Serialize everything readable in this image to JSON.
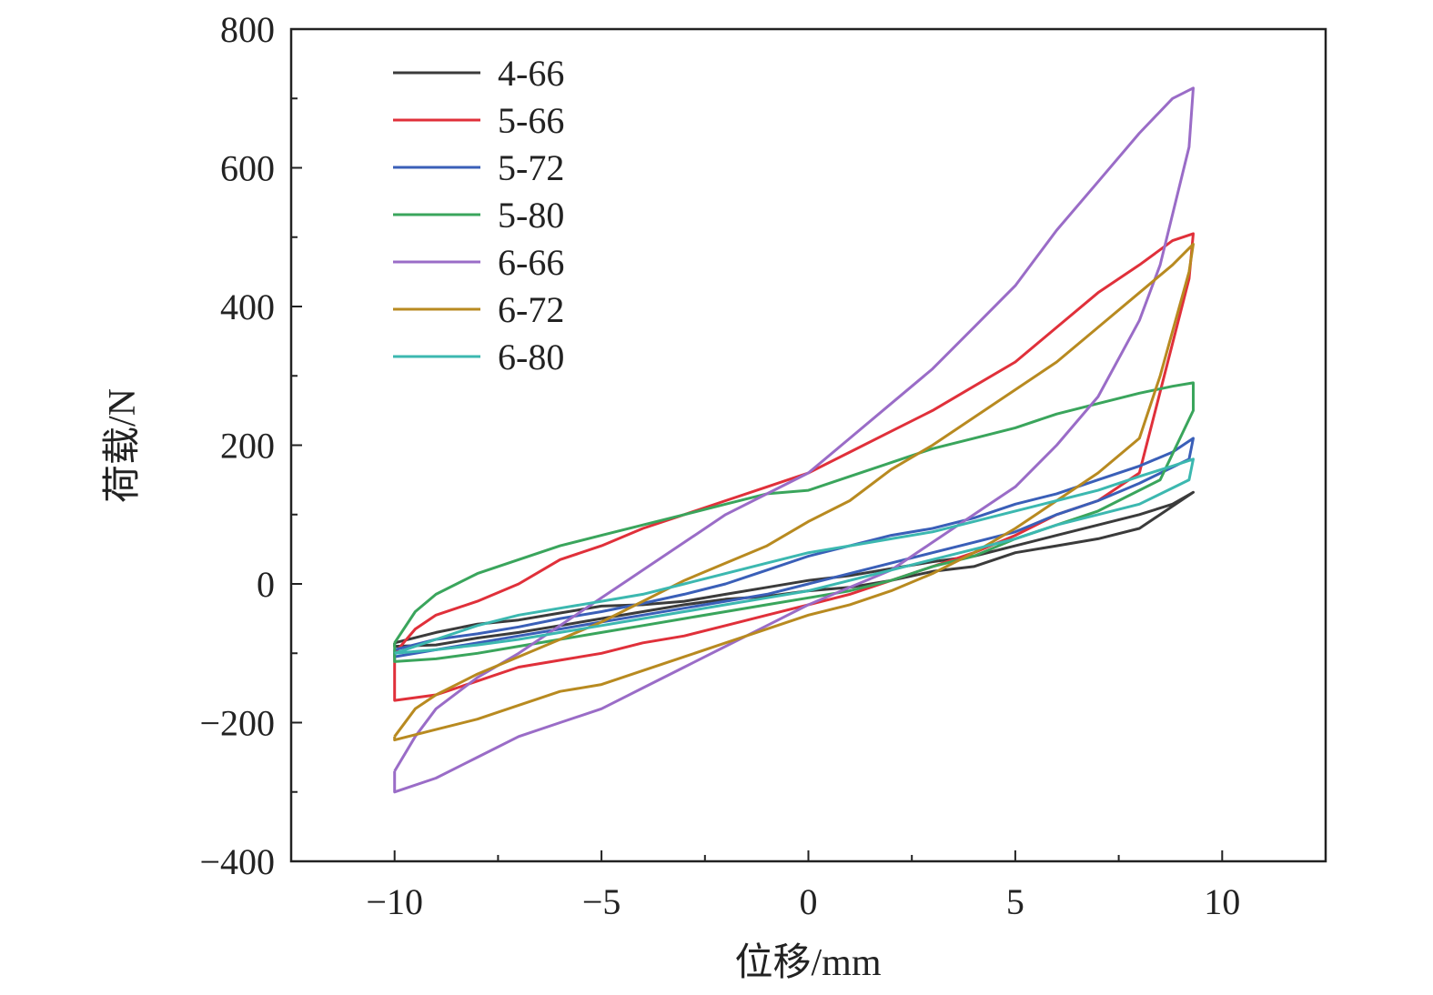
{
  "chart_data": {
    "type": "line",
    "title": "",
    "xlabel": "位移/mm",
    "ylabel": "荷载/N",
    "xlim": [
      -12.5,
      12.5
    ],
    "ylim": [
      -400,
      800
    ],
    "x_ticks": [
      -10,
      -5,
      0,
      5,
      10
    ],
    "x_tick_labels": [
      "−10",
      "−5",
      "0",
      "5",
      "10"
    ],
    "y_ticks": [
      -400,
      -200,
      0,
      200,
      400,
      600,
      800
    ],
    "y_tick_labels": [
      "−400",
      "−200",
      "0",
      "200",
      "400",
      "600",
      "800"
    ],
    "grid": false,
    "legend_position": "top-left",
    "series": [
      {
        "name": "4-66",
        "color": "#3b3b3b",
        "x": [
          -10,
          -9,
          -8,
          -7,
          -6,
          -5,
          -4,
          -3,
          -2,
          -1,
          0,
          1,
          2,
          3,
          4,
          5,
          6,
          7,
          8,
          8.8,
          9.3,
          9.2,
          8,
          7,
          6,
          5,
          4,
          3,
          2,
          1,
          0,
          -1,
          -2,
          -3,
          -4,
          -5,
          -6,
          -7,
          -8,
          -9,
          -10,
          -10
        ],
        "y": [
          -85,
          -70,
          -58,
          -52,
          -42,
          -32,
          -30,
          -25,
          -15,
          -5,
          5,
          12,
          22,
          32,
          40,
          55,
          70,
          85,
          100,
          115,
          132,
          128,
          80,
          65,
          55,
          45,
          25,
          18,
          5,
          -5,
          -10,
          -18,
          -22,
          -30,
          -40,
          -50,
          -60,
          -70,
          -78,
          -88,
          -90,
          -85
        ]
      },
      {
        "name": "5-66",
        "color": "#e0303a",
        "x": [
          -10,
          -9.5,
          -9,
          -8,
          -7,
          -6,
          -5,
          -4,
          -3,
          -2,
          -1,
          0,
          1,
          2,
          3,
          4,
          5,
          6,
          7,
          8,
          8.8,
          9.3,
          9.2,
          8,
          7,
          6,
          5,
          4,
          3,
          2,
          1,
          0,
          -1,
          -2,
          -3,
          -4,
          -5,
          -6,
          -7,
          -8,
          -9,
          -10,
          -10
        ],
        "y": [
          -100,
          -65,
          -45,
          -25,
          0,
          35,
          55,
          80,
          100,
          120,
          140,
          160,
          190,
          220,
          250,
          285,
          320,
          370,
          420,
          460,
          495,
          505,
          440,
          160,
          120,
          100,
          70,
          45,
          25,
          5,
          -15,
          -30,
          -45,
          -60,
          -75,
          -85,
          -100,
          -110,
          -120,
          -140,
          -160,
          -168,
          -100
        ]
      },
      {
        "name": "5-72",
        "color": "#3a5fb8",
        "x": [
          -10,
          -9,
          -8,
          -7,
          -6,
          -5,
          -4,
          -3,
          -2,
          -1,
          0,
          1,
          2,
          3,
          4,
          5,
          6,
          7,
          8,
          8.8,
          9.3,
          9.2,
          8,
          7,
          6,
          5,
          4,
          3,
          2,
          1,
          0,
          -1,
          -2,
          -3,
          -4,
          -5,
          -6,
          -7,
          -8,
          -9,
          -10,
          -10
        ],
        "y": [
          -95,
          -80,
          -72,
          -62,
          -50,
          -40,
          -28,
          -15,
          0,
          20,
          40,
          55,
          70,
          80,
          95,
          115,
          130,
          150,
          170,
          190,
          210,
          180,
          145,
          120,
          100,
          75,
          60,
          45,
          30,
          15,
          0,
          -15,
          -25,
          -35,
          -45,
          -55,
          -65,
          -75,
          -85,
          -95,
          -105,
          -95
        ]
      },
      {
        "name": "5-80",
        "color": "#3aa55c",
        "x": [
          -10,
          -9.5,
          -9,
          -8,
          -7,
          -6,
          -5,
          -4,
          -3,
          -2,
          -1,
          0,
          1,
          2,
          3,
          4,
          5,
          6,
          7,
          8,
          8.8,
          9.3,
          9.3,
          8.5,
          7,
          6,
          5,
          4,
          3,
          2,
          1,
          0,
          -1,
          -2,
          -3,
          -4,
          -5,
          -6,
          -7,
          -8,
          -9,
          -10,
          -10
        ],
        "y": [
          -85,
          -40,
          -15,
          15,
          35,
          55,
          70,
          85,
          100,
          115,
          130,
          135,
          155,
          175,
          195,
          210,
          225,
          245,
          260,
          275,
          285,
          290,
          250,
          150,
          105,
          85,
          65,
          40,
          25,
          5,
          -10,
          -20,
          -30,
          -40,
          -50,
          -60,
          -70,
          -80,
          -90,
          -100,
          -108,
          -112,
          -85
        ]
      },
      {
        "name": "6-66",
        "color": "#9a6cc7",
        "x": [
          -10,
          -9.5,
          -9,
          -8,
          -7,
          -6,
          -5,
          -4,
          -3,
          -2,
          -1,
          0,
          1,
          2,
          3,
          4,
          5,
          6,
          7,
          8,
          8.8,
          9.3,
          9.2,
          8.5,
          8,
          7,
          6,
          5,
          4,
          3,
          2,
          1,
          0,
          -1,
          -2,
          -3,
          -4,
          -5,
          -6,
          -7,
          -8,
          -9,
          -10,
          -10
        ],
        "y": [
          -270,
          -220,
          -180,
          -135,
          -100,
          -60,
          -20,
          20,
          60,
          100,
          130,
          160,
          210,
          260,
          310,
          370,
          430,
          510,
          580,
          650,
          700,
          715,
          630,
          460,
          380,
          270,
          200,
          140,
          100,
          60,
          20,
          -5,
          -30,
          -60,
          -90,
          -120,
          -150,
          -180,
          -200,
          -220,
          -250,
          -280,
          -300,
          -270
        ]
      },
      {
        "name": "6-72",
        "color": "#b88a20",
        "x": [
          -10,
          -9.5,
          -9,
          -8,
          -7,
          -6,
          -5,
          -4,
          -3,
          -2,
          -1,
          0,
          1,
          2,
          3,
          4,
          5,
          6,
          7,
          8,
          8.8,
          9.3,
          9.2,
          8.5,
          8,
          7,
          6,
          5,
          4,
          3,
          2,
          1,
          0,
          -1,
          -2,
          -3,
          -4,
          -5,
          -6,
          -7,
          -8,
          -9,
          -10,
          -10
        ],
        "y": [
          -220,
          -180,
          -160,
          -130,
          -105,
          -80,
          -55,
          -25,
          5,
          30,
          55,
          90,
          120,
          165,
          200,
          240,
          280,
          320,
          370,
          420,
          460,
          490,
          450,
          300,
          210,
          160,
          120,
          80,
          45,
          15,
          -10,
          -30,
          -45,
          -65,
          -85,
          -105,
          -125,
          -145,
          -155,
          -175,
          -195,
          -210,
          -225,
          -220
        ]
      },
      {
        "name": "6-80",
        "color": "#3cb8b0",
        "x": [
          -10,
          -9,
          -8,
          -7,
          -6,
          -5,
          -4,
          -3,
          -2,
          -1,
          0,
          1,
          2,
          3,
          4,
          5,
          6,
          7,
          8,
          8.8,
          9.3,
          9.2,
          8,
          7,
          6,
          5,
          4,
          3,
          2,
          1,
          0,
          -1,
          -2,
          -3,
          -4,
          -5,
          -6,
          -7,
          -8,
          -9,
          -10,
          -10
        ],
        "y": [
          -100,
          -80,
          -60,
          -45,
          -35,
          -25,
          -15,
          0,
          15,
          30,
          45,
          55,
          65,
          75,
          90,
          105,
          120,
          135,
          155,
          170,
          180,
          150,
          115,
          100,
          85,
          65,
          50,
          35,
          20,
          5,
          -10,
          -20,
          -30,
          -40,
          -50,
          -60,
          -70,
          -80,
          -88,
          -95,
          -100,
          -100
        ]
      }
    ]
  }
}
